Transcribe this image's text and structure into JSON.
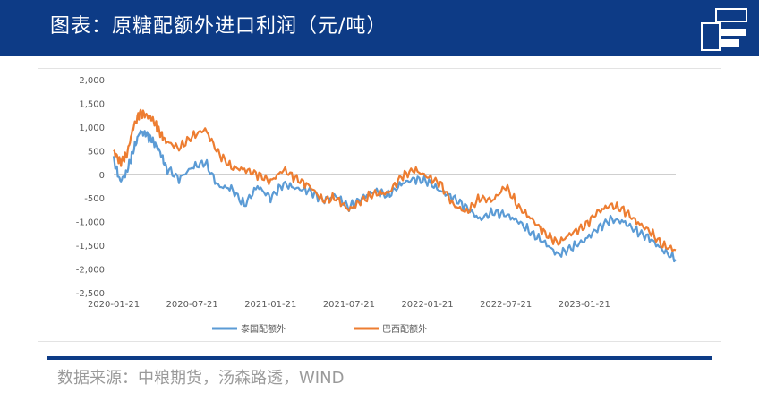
{
  "header": {
    "title": "图表：原糖配额外进口利润（元/吨）"
  },
  "colors": {
    "header_bg": "#0d3b86",
    "series_thailand": "#5b9bd5",
    "series_brazil": "#ed7d31",
    "axis_text": "#595959",
    "divider": "#0d3b86",
    "source_text": "#9a9a9a"
  },
  "footer": {
    "source": "数据来源：中粮期货，汤森路透，WIND"
  },
  "chart_data": {
    "type": "line",
    "title": "原糖配额外进口利润（元/吨）",
    "xlabel": "",
    "ylabel": "",
    "ylim": [
      -2500,
      2000
    ],
    "y_ticks": [
      2000,
      1500,
      1000,
      500,
      0,
      -500,
      -1000,
      -1500,
      -2000,
      -2500
    ],
    "y_tick_labels": [
      "2,000",
      "1,500",
      "1,000",
      "500",
      "0",
      "-500",
      "-1,000",
      "-1,500",
      "-2,000",
      "-2,500"
    ],
    "x_tick_labels": [
      "2020-01-21",
      "2020-07-21",
      "2021-01-21",
      "2021-07-21",
      "2022-01-21",
      "2022-07-21",
      "2023-01-21"
    ],
    "x_range_months": [
      0,
      43
    ],
    "legend_position": "bottom",
    "series": [
      {
        "name": "泰国配额外",
        "color": "#5b9bd5",
        "x_months": [
          0,
          0.5,
          1,
          1.5,
          2,
          2.5,
          3,
          3.5,
          4,
          5,
          6,
          7,
          8,
          9,
          10,
          11,
          12,
          13,
          14,
          15,
          16,
          17,
          18,
          19,
          20,
          21,
          22,
          23,
          24,
          25,
          26,
          27,
          28,
          29,
          30,
          31,
          32,
          33,
          34,
          35,
          36,
          37,
          38,
          39,
          40,
          41,
          42,
          43
        ],
        "values": [
          300,
          -150,
          50,
          500,
          900,
          850,
          700,
          500,
          150,
          -100,
          150,
          250,
          -250,
          -300,
          -650,
          -250,
          -500,
          -200,
          -300,
          -350,
          -550,
          -450,
          -700,
          -500,
          -350,
          -450,
          -200,
          -100,
          -150,
          -350,
          -500,
          -700,
          -950,
          -800,
          -850,
          -1000,
          -1250,
          -1450,
          -1700,
          -1550,
          -1400,
          -1150,
          -950,
          -1000,
          -1200,
          -1350,
          -1600,
          -1800
        ]
      },
      {
        "name": "巴西配额外",
        "color": "#ed7d31",
        "x_months": [
          0,
          0.5,
          1,
          1.5,
          2,
          2.5,
          3,
          3.5,
          4,
          5,
          6,
          7,
          8,
          9,
          10,
          11,
          12,
          13,
          14,
          15,
          16,
          17,
          18,
          19,
          20,
          21,
          22,
          23,
          24,
          25,
          26,
          27,
          28,
          29,
          30,
          31,
          32,
          33,
          34,
          35,
          36,
          37,
          38,
          39,
          40,
          41,
          42,
          43
        ],
        "values": [
          500,
          250,
          400,
          1000,
          1300,
          1250,
          1150,
          900,
          700,
          550,
          800,
          950,
          450,
          150,
          100,
          0,
          -150,
          100,
          -100,
          -250,
          -550,
          -500,
          -750,
          -550,
          -400,
          -400,
          -50,
          100,
          -50,
          -200,
          -650,
          -800,
          -500,
          -550,
          -250,
          -700,
          -950,
          -1250,
          -1450,
          -1250,
          -1100,
          -800,
          -650,
          -750,
          -1000,
          -1200,
          -1500,
          -1600
        ]
      }
    ]
  }
}
